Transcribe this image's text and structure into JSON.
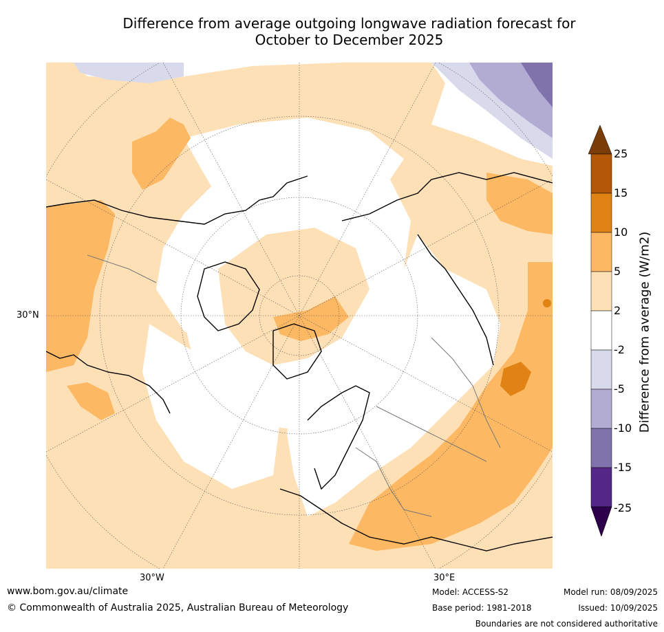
{
  "title": {
    "line1": "Difference from average outgoing longwave radiation forecast for",
    "line2": "October to December 2025"
  },
  "map": {
    "projection": "north-polar-stereographic",
    "labels": {
      "lat_30n": "30°N",
      "lon_30w": "30°W",
      "lon_30e": "30°E"
    }
  },
  "colorbar": {
    "title": "Difference from average (W/m2)",
    "ticks": [
      "25",
      "15",
      "10",
      "5",
      "2",
      "-2",
      "-5",
      "-10",
      "-15",
      "-25"
    ],
    "colors": {
      "above_25": "#7a3d0a",
      "15_25": "#b35806",
      "10_15": "#e08214",
      "5_10": "#fdb863",
      "2_5": "#fee0b6",
      "neutral": "#ffffff",
      "m2_m5": "#d8daeb",
      "m5_m10": "#b2abd2",
      "m10_m15": "#8073ac",
      "m15_m25": "#542788",
      "below_m25": "#2d004b"
    }
  },
  "footer": {
    "url": "www.bom.gov.au/climate",
    "copyright": "© Commonwealth of Australia 2025, Australian Bureau of Meteorology",
    "model": "Model: ACCESS-S2",
    "base_period": "Base period: 1981-2018",
    "model_run": "Model run: 08/09/2025",
    "issued": "Issued: 10/09/2025",
    "boundaries_note": "Boundaries are not considered authoritative"
  }
}
